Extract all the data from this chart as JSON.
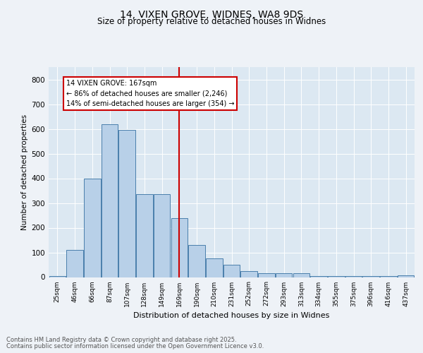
{
  "title1": "14, VIXEN GROVE, WIDNES, WA8 9DS",
  "title2": "Size of property relative to detached houses in Widnes",
  "xlabel": "Distribution of detached houses by size in Widnes",
  "ylabel": "Number of detached properties",
  "categories": [
    "25sqm",
    "46sqm",
    "66sqm",
    "87sqm",
    "107sqm",
    "128sqm",
    "149sqm",
    "169sqm",
    "190sqm",
    "210sqm",
    "231sqm",
    "252sqm",
    "272sqm",
    "293sqm",
    "313sqm",
    "334sqm",
    "355sqm",
    "375sqm",
    "396sqm",
    "416sqm",
    "437sqm"
  ],
  "bar_heights": [
    5,
    110,
    400,
    620,
    595,
    335,
    335,
    240,
    130,
    75,
    50,
    25,
    15,
    15,
    15,
    5,
    5,
    5,
    5,
    5,
    8
  ],
  "ylim_max": 850,
  "yticks": [
    0,
    100,
    200,
    300,
    400,
    500,
    600,
    700,
    800
  ],
  "bar_color": "#b8d0e8",
  "bar_edge_color": "#4a7fab",
  "vline_pos": 7.0,
  "vline_color": "#cc0000",
  "annotation_text_line1": "14 VIXEN GROVE: 167sqm",
  "annotation_text_line2": "← 86% of detached houses are smaller (2,246)",
  "annotation_text_line3": "14% of semi-detached houses are larger (354) →",
  "box_edge_color": "#cc0000",
  "bg_color": "#dce8f2",
  "fig_bg": "#eef2f7",
  "footer1": "Contains HM Land Registry data © Crown copyright and database right 2025.",
  "footer2": "Contains public sector information licensed under the Open Government Licence v3.0."
}
